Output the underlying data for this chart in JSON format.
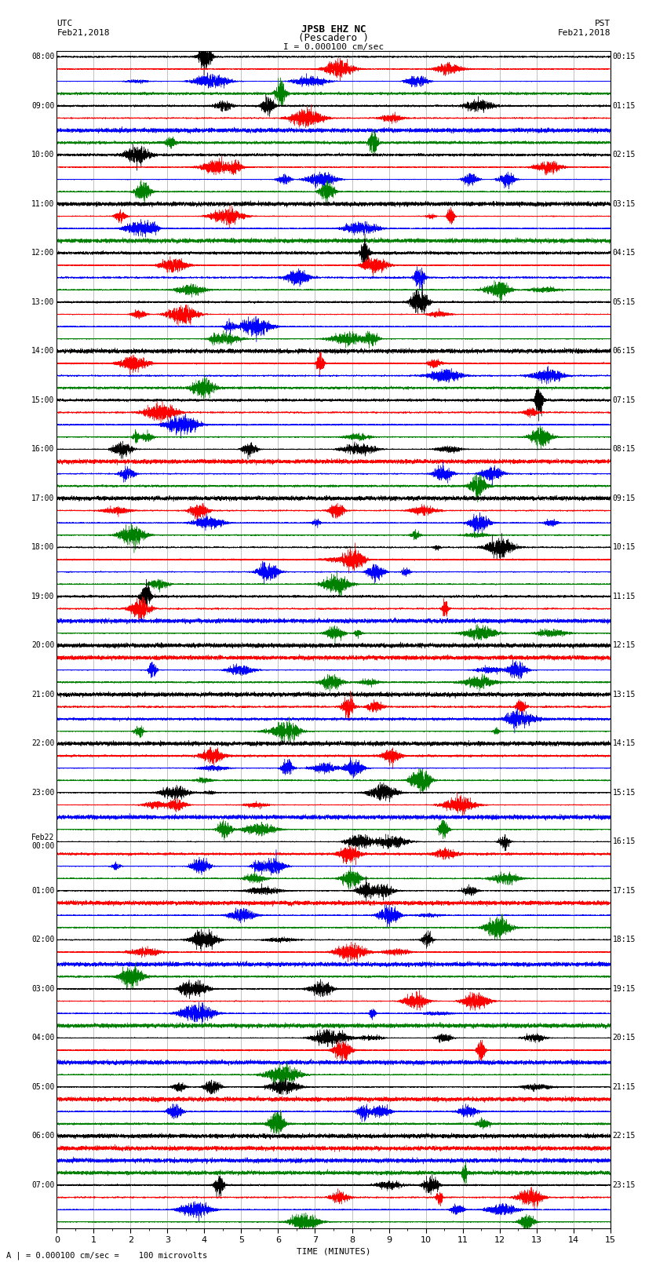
{
  "title_line1": "JPSB EHZ NC",
  "title_line2": "(Pescadero )",
  "scale_text": "I = 0.000100 cm/sec",
  "left_label_top": "UTC",
  "left_label_date": "Feb21,2018",
  "right_label_top": "PST",
  "right_label_date": "Feb21,2018",
  "bottom_label": "TIME (MINUTES)",
  "bottom_note": "A | = 0.000100 cm/sec =    100 microvolts",
  "utc_times": [
    "08:00",
    "09:00",
    "10:00",
    "11:00",
    "12:00",
    "13:00",
    "14:00",
    "15:00",
    "16:00",
    "17:00",
    "18:00",
    "19:00",
    "20:00",
    "21:00",
    "22:00",
    "23:00",
    "Feb22\n00:00",
    "01:00",
    "02:00",
    "03:00",
    "04:00",
    "05:00",
    "06:00",
    "07:00"
  ],
  "pst_times": [
    "00:15",
    "01:15",
    "02:15",
    "03:15",
    "04:15",
    "05:15",
    "06:15",
    "07:15",
    "08:15",
    "09:15",
    "10:15",
    "11:15",
    "12:15",
    "13:15",
    "14:15",
    "15:15",
    "16:15",
    "17:15",
    "18:15",
    "19:15",
    "20:15",
    "21:15",
    "22:15",
    "23:15"
  ],
  "n_rows": 24,
  "traces_per_row": 4,
  "trace_colors": [
    "black",
    "red",
    "blue",
    "green"
  ],
  "bg_color": "white",
  "fig_width": 8.5,
  "fig_height": 16.13,
  "dpi": 100,
  "x_min": 0,
  "x_max": 15,
  "x_ticks": [
    0,
    1,
    2,
    3,
    4,
    5,
    6,
    7,
    8,
    9,
    10,
    11,
    12,
    13,
    14,
    15
  ],
  "grid_color": "#aaaaaa",
  "n_points": 9000
}
